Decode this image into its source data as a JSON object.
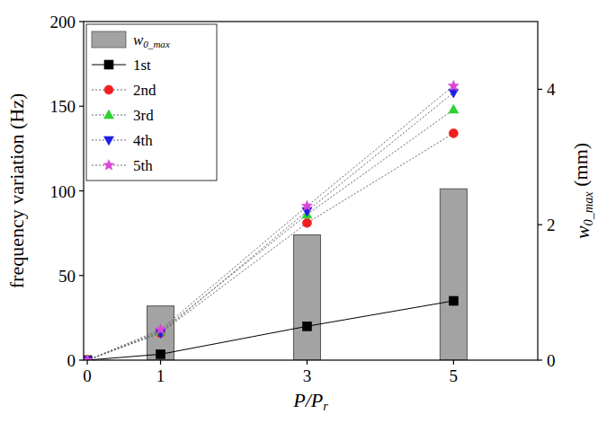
{
  "chart_data": {
    "type": "line",
    "x_label": "P/Pr",
    "y_label": "frequency variation (Hz)",
    "y2_label": "w0_max (mm)",
    "x": [
      0,
      1,
      3,
      5
    ],
    "xlim": [
      -0.05,
      6.15
    ],
    "xticks": [
      0,
      1,
      3,
      5
    ],
    "ylim": [
      0,
      200
    ],
    "yticks": [
      0,
      50,
      100,
      150,
      200
    ],
    "y2lim": [
      0,
      5
    ],
    "y2ticks": [
      0,
      2,
      4
    ],
    "legend": "upper left",
    "grid": false,
    "series": [
      {
        "name": "w0_max",
        "type": "bar",
        "axis": "y2",
        "color": "#a3a3a3",
        "values": [
          null,
          0.8,
          1.85,
          2.53
        ]
      },
      {
        "name": "1st",
        "type": "line",
        "color": "#000000",
        "marker": "square",
        "line_style": "solid",
        "values": [
          0,
          3.5,
          20,
          35
        ]
      },
      {
        "name": "2nd",
        "type": "line",
        "color": "#f01e1e",
        "marker": "circle",
        "line_style": "dotted",
        "values": [
          0,
          16,
          81,
          134
        ]
      },
      {
        "name": "3rd",
        "type": "line",
        "color": "#2ed12e",
        "marker": "triangle-up",
        "line_style": "dotted",
        "values": [
          0,
          17,
          86,
          148
        ]
      },
      {
        "name": "4th",
        "type": "line",
        "color": "#1e1ee6",
        "marker": "triangle-down",
        "line_style": "dotted",
        "values": [
          0,
          16,
          88,
          158
        ]
      },
      {
        "name": "5th",
        "type": "line",
        "color": "#d846d8",
        "marker": "star",
        "line_style": "dotted",
        "values": [
          0,
          18,
          91,
          162
        ]
      }
    ]
  }
}
